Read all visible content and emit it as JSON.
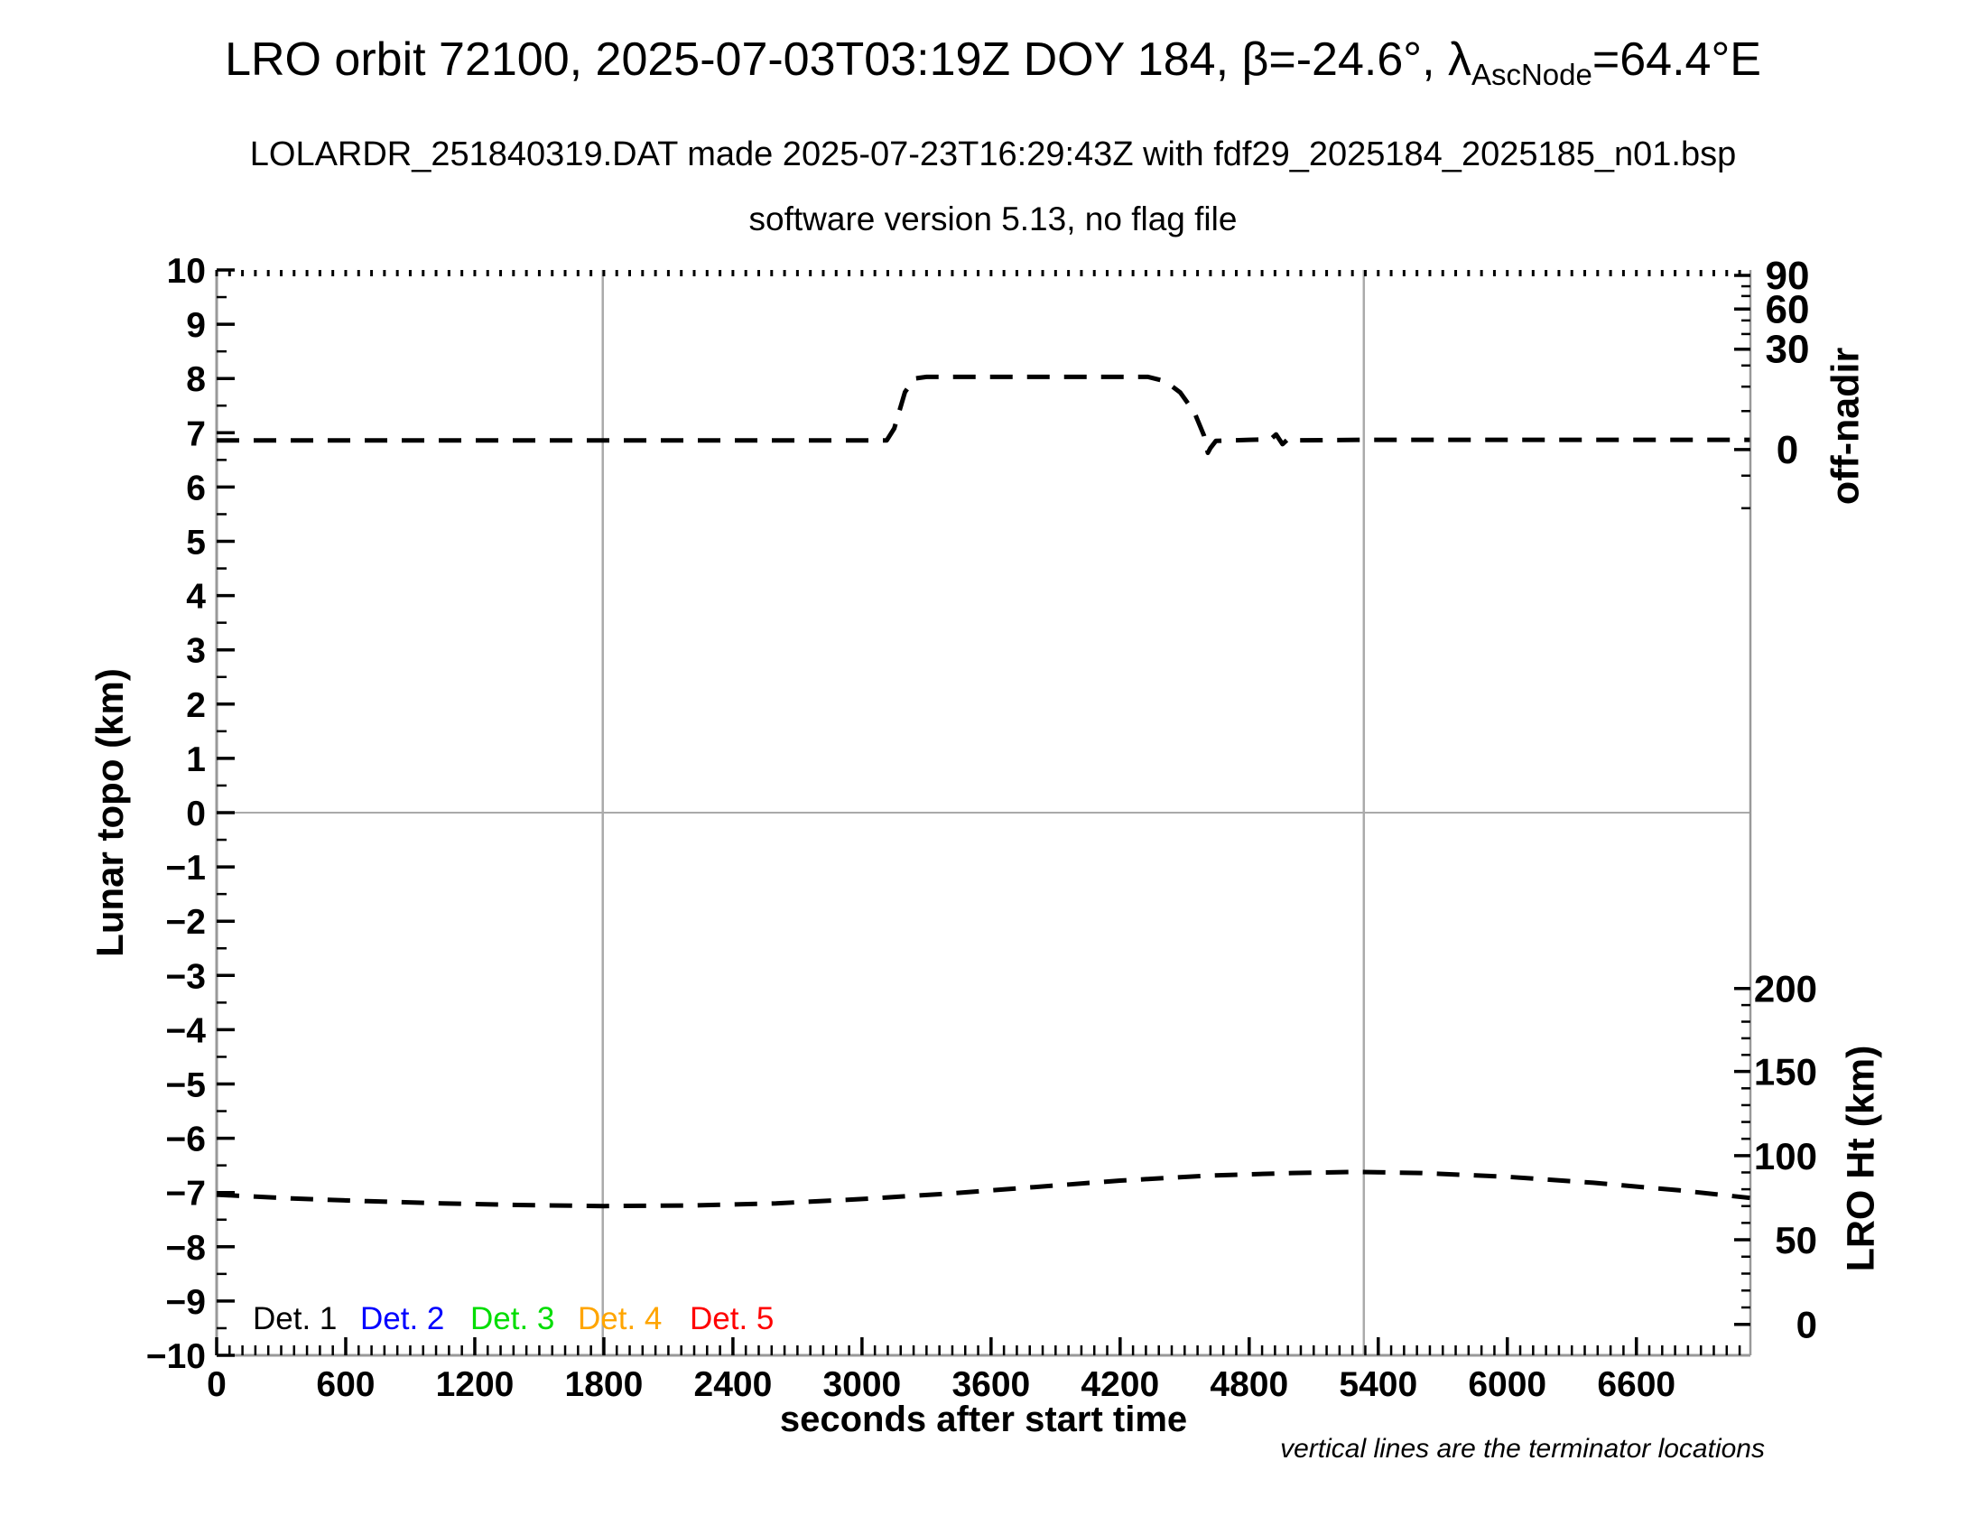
{
  "header": {
    "title_part1": "LRO orbit 72100, 2025-07-03T03:19Z DOY 184, β=-24.6°, λ",
    "title_sub": "AscNode",
    "title_part2": "=64.4°E",
    "subtitle1": "LOLARDR_251840319.DAT made 2025-07-23T16:29:43Z with fdf29_2025184_2025185_n01.bsp",
    "subtitle2": "software version 5.13, no flag file"
  },
  "chart_data": {
    "type": "line",
    "xlabel": "seconds after start time",
    "ylabel_left": "Lunar topo (km)",
    "ylabel_right_top": "off-nadir",
    "ylabel_right_bottom": "LRO Ht (km)",
    "note": "vertical lines are the terminator locations",
    "x_range": [
      0,
      7130
    ],
    "x_major_tick_step": 600,
    "x_major_tick_labels": [
      "0",
      "600",
      "1200",
      "1800",
      "2400",
      "3000",
      "3600",
      "4200",
      "4800",
      "5400",
      "6000",
      "6600"
    ],
    "x_minor_tick_step": 60,
    "y_left_range": [
      -10,
      10
    ],
    "y_left_major_step": 1,
    "y_left_minor_step": 0.5,
    "horizontal_gridline_at_topo": 0,
    "terminator_lines_x_seconds": [
      1795,
      5333
    ],
    "gridline_color": "#aaaaaa",
    "frame_color": "#999999",
    "curve_color": "#000000",
    "right_axis_off_nadir": {
      "labeled_ticks": [
        {
          "label": "90",
          "y_topo": 9.9
        },
        {
          "label": "60",
          "y_topo": 9.28
        },
        {
          "label": "30",
          "y_topo": 8.54
        },
        {
          "label": "0",
          "y_topo": 6.69
        }
      ],
      "minor_ticks_y_topo": [
        9.7,
        9.52,
        9.07,
        8.82,
        8.24,
        7.85,
        7.4,
        6.21,
        5.61
      ]
    },
    "right_axis_lro_ht": {
      "labeled_ticks": [
        {
          "label": "200",
          "y_topo": -3.24
        },
        {
          "label": "150",
          "y_topo": -4.77
        },
        {
          "label": "100",
          "y_topo": -6.32
        },
        {
          "label": "50",
          "y_topo": -7.87
        },
        {
          "label": "0",
          "y_topo": -9.43
        }
      ],
      "minors_between_majors": 4
    },
    "legend": [
      {
        "label": "Det. 1",
        "color": "#000000",
        "x": 280
      },
      {
        "label": "Det. 2",
        "color": "#0000ff",
        "x": 399
      },
      {
        "label": "Det. 3",
        "color": "#00dd00",
        "x": 521
      },
      {
        "label": "Det. 4",
        "color": "#ffa500",
        "x": 640
      },
      {
        "label": "Det. 5",
        "color": "#ff0000",
        "x": 764
      }
    ],
    "series": [
      {
        "name": "spacecraft off-nadir angle (read on upper-right axis)",
        "line_style": "dashed",
        "units_note": "points given in left-axis (Lunar topo) scale units as plotted",
        "points": [
          [
            0,
            6.86
          ],
          [
            1795,
            6.86
          ],
          [
            3000,
            6.86
          ],
          [
            3115,
            6.86
          ],
          [
            3150,
            7.08
          ],
          [
            3200,
            7.75
          ],
          [
            3245,
            8.0
          ],
          [
            3300,
            8.03
          ],
          [
            4000,
            8.03
          ],
          [
            4330,
            8.03
          ],
          [
            4410,
            7.95
          ],
          [
            4480,
            7.74
          ],
          [
            4545,
            7.38
          ],
          [
            4590,
            6.95
          ],
          [
            4608,
            6.63
          ],
          [
            4620,
            6.72
          ],
          [
            4645,
            6.85
          ],
          [
            4800,
            6.87
          ],
          [
            4900,
            6.88
          ],
          [
            4925,
            6.97
          ],
          [
            4955,
            6.79
          ],
          [
            4985,
            6.9
          ],
          [
            5020,
            6.86
          ],
          [
            5333,
            6.87
          ],
          [
            6000,
            6.87
          ],
          [
            7128,
            6.87
          ]
        ]
      },
      {
        "name": "LRO height above surface (read on lower-right axis)",
        "line_style": "dashed",
        "units_note": "points given in left-axis (Lunar topo) scale units as plotted",
        "points": [
          [
            0,
            -7.04
          ],
          [
            350,
            -7.11
          ],
          [
            700,
            -7.16
          ],
          [
            1050,
            -7.2
          ],
          [
            1400,
            -7.23
          ],
          [
            1800,
            -7.25
          ],
          [
            2200,
            -7.24
          ],
          [
            2600,
            -7.2
          ],
          [
            3000,
            -7.12
          ],
          [
            3400,
            -7.02
          ],
          [
            3800,
            -6.9
          ],
          [
            4200,
            -6.78
          ],
          [
            4600,
            -6.69
          ],
          [
            5000,
            -6.64
          ],
          [
            5300,
            -6.62
          ],
          [
            5600,
            -6.64
          ],
          [
            6000,
            -6.71
          ],
          [
            6400,
            -6.82
          ],
          [
            6800,
            -6.96
          ],
          [
            7128,
            -7.1
          ]
        ]
      }
    ]
  }
}
